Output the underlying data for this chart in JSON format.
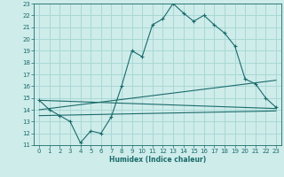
{
  "xlabel": "Humidex (Indice chaleur)",
  "bg_color": "#ceecea",
  "grid_color": "#a8d8d5",
  "line_color": "#1a6b6b",
  "xlim": [
    -0.5,
    23.5
  ],
  "ylim": [
    11,
    23
  ],
  "xticks": [
    0,
    1,
    2,
    3,
    4,
    5,
    6,
    7,
    8,
    9,
    10,
    11,
    12,
    13,
    14,
    15,
    16,
    17,
    18,
    19,
    20,
    21,
    22,
    23
  ],
  "yticks": [
    11,
    12,
    13,
    14,
    15,
    16,
    17,
    18,
    19,
    20,
    21,
    22,
    23
  ],
  "main_curve_x": [
    0,
    1,
    2,
    3,
    4,
    5,
    6,
    7,
    8,
    9,
    10,
    11,
    12,
    13,
    14,
    15,
    16,
    17,
    18,
    19,
    20,
    21,
    22,
    23
  ],
  "main_curve_y": [
    14.8,
    14.0,
    13.5,
    13.0,
    11.2,
    12.2,
    12.0,
    13.4,
    16.0,
    19.0,
    18.5,
    21.2,
    21.7,
    23.0,
    22.2,
    21.5,
    22.0,
    21.2,
    20.5,
    19.4,
    16.6,
    16.2,
    15.0,
    14.2
  ],
  "line2_x": [
    0,
    23
  ],
  "line2_y": [
    14.8,
    14.1
  ],
  "line3_x": [
    0,
    23
  ],
  "line3_y": [
    14.0,
    16.5
  ],
  "line4_x": [
    0,
    23
  ],
  "line4_y": [
    13.5,
    13.9
  ]
}
